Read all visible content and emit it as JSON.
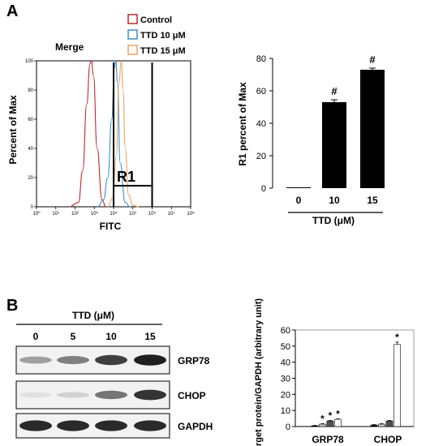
{
  "panels": {
    "a": {
      "letter": "A"
    },
    "b": {
      "letter": "B"
    }
  },
  "colors": {
    "control": "#c0272d",
    "ttd10": "#3b8fcf",
    "ttd15": "#f0a060",
    "bar_black": "#000000",
    "bar_dark": "#505050",
    "bar_light": "#d0d0d0"
  },
  "chart_data": [
    {
      "type": "line",
      "title": "Merge",
      "xlabel": "FITC",
      "ylabel": "Percent of Max",
      "x_scale": "log",
      "xlim": [
        1,
        100000000
      ],
      "ylim": [
        0,
        100
      ],
      "x_ticks": [
        "10⁰",
        "10¹",
        "10²",
        "10³",
        "10⁴",
        "10⁵",
        "10⁶",
        "10⁷",
        "10⁸"
      ],
      "y_ticks": [
        "0",
        "20",
        "40",
        "60",
        "80",
        "100"
      ],
      "gate": {
        "label": "R1",
        "from": 10000,
        "to": 1000000
      },
      "legend": [
        "Control",
        "TTD 10 μM",
        "TTD 15 μM"
      ],
      "series": [
        {
          "name": "Control",
          "color": "#c0272d",
          "peak": 700,
          "points": [
            [
              50,
              0
            ],
            [
              150,
              3
            ],
            [
              250,
              25
            ],
            [
              400,
              70
            ],
            [
              600,
              98
            ],
            [
              700,
              100
            ],
            [
              900,
              90
            ],
            [
              1400,
              40
            ],
            [
              2500,
              5
            ],
            [
              4000,
              0
            ]
          ]
        },
        {
          "name": "TTD 10 μM",
          "color": "#3b8fcf",
          "peak": 13000,
          "points": [
            [
              1500,
              0
            ],
            [
              3000,
              5
            ],
            [
              5000,
              20
            ],
            [
              8000,
              60
            ],
            [
              11000,
              95
            ],
            [
              13000,
              100
            ],
            [
              16000,
              85
            ],
            [
              22000,
              30
            ],
            [
              40000,
              3
            ],
            [
              70000,
              0
            ]
          ]
        },
        {
          "name": "TTD 15 μM",
          "color": "#f0a060",
          "peak": 25000,
          "points": [
            [
              5000,
              0
            ],
            [
              9000,
              6
            ],
            [
              14000,
              35
            ],
            [
              19000,
              85
            ],
            [
              25000,
              100
            ],
            [
              31000,
              80
            ],
            [
              40000,
              40
            ],
            [
              60000,
              8
            ],
            [
              100000,
              1
            ],
            [
              200000,
              0
            ]
          ]
        }
      ]
    },
    {
      "type": "bar",
      "ylabel": "R1 percent of Max",
      "xlabel": "TTD (μM)",
      "categories": [
        "0",
        "10",
        "15"
      ],
      "values": [
        0.5,
        53,
        73
      ],
      "errors": [
        0,
        1.5,
        1
      ],
      "annotations": [
        "",
        "#",
        "#"
      ],
      "ylim": [
        0,
        80
      ],
      "y_ticks": [
        "0",
        "20",
        "40",
        "60",
        "80"
      ]
    },
    {
      "type": "bar",
      "ylabel": "Target protein/GAPDH (arbitrary unit)",
      "groups": [
        "GRP78",
        "CHOP"
      ],
      "bar_colors": [
        "#000000",
        "#d0d0d0",
        "#505050",
        "#ffffff"
      ],
      "series": [
        {
          "values": [
            0.5,
            1.5,
            3.5,
            4.5
          ],
          "errors": [
            0.2,
            0.3,
            0.3,
            0.3
          ],
          "annotations": [
            "",
            "*",
            "*",
            "*"
          ]
        },
        {
          "values": [
            1,
            1.5,
            3.5,
            51
          ],
          "errors": [
            0.2,
            0.3,
            0.3,
            1.5
          ],
          "annotations": [
            "",
            "",
            "",
            "*"
          ]
        }
      ],
      "ylim": [
        0,
        60
      ],
      "y_ticks": [
        "0",
        "10",
        "20",
        "30",
        "40",
        "50",
        "60"
      ]
    }
  ],
  "blot": {
    "header": "TTD (μM)",
    "lanes": [
      "0",
      "5",
      "10",
      "15"
    ],
    "rows": [
      {
        "label": "GRP78",
        "intensities": [
          0.35,
          0.5,
          0.8,
          0.95
        ]
      },
      {
        "label": "CHOP",
        "intensities": [
          0.05,
          0.12,
          0.55,
          0.85
        ]
      },
      {
        "label": "GAPDH",
        "intensities": [
          0.9,
          0.9,
          0.9,
          0.9
        ]
      }
    ]
  }
}
